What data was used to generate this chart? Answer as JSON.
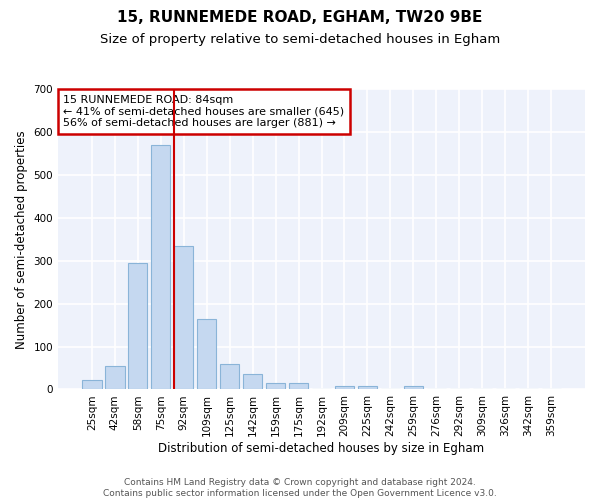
{
  "title1": "15, RUNNEMEDE ROAD, EGHAM, TW20 9BE",
  "title2": "Size of property relative to semi-detached houses in Egham",
  "xlabel": "Distribution of semi-detached houses by size in Egham",
  "ylabel": "Number of semi-detached properties",
  "categories": [
    "25sqm",
    "42sqm",
    "58sqm",
    "75sqm",
    "92sqm",
    "109sqm",
    "125sqm",
    "142sqm",
    "159sqm",
    "175sqm",
    "192sqm",
    "209sqm",
    "225sqm",
    "242sqm",
    "259sqm",
    "276sqm",
    "292sqm",
    "309sqm",
    "326sqm",
    "342sqm",
    "359sqm"
  ],
  "values": [
    22,
    55,
    295,
    570,
    335,
    165,
    60,
    35,
    15,
    14,
    0,
    8,
    8,
    0,
    8,
    0,
    0,
    0,
    0,
    0,
    0
  ],
  "bar_color": "#c5d8f0",
  "bar_edgecolor": "#8ab4d8",
  "vline_color": "#cc0000",
  "annotation_line1": "15 RUNNEMEDE ROAD: 84sqm",
  "annotation_line2": "← 41% of semi-detached houses are smaller (645)",
  "annotation_line3": "56% of semi-detached houses are larger (881) →",
  "annotation_box_color": "#ffffff",
  "annotation_box_edgecolor": "#cc0000",
  "ylim": [
    0,
    700
  ],
  "yticks": [
    0,
    100,
    200,
    300,
    400,
    500,
    600,
    700
  ],
  "footer": "Contains HM Land Registry data © Crown copyright and database right 2024.\nContains public sector information licensed under the Open Government Licence v3.0.",
  "bg_color": "#eef2fb",
  "grid_color": "#ffffff",
  "title1_fontsize": 11,
  "title2_fontsize": 9.5,
  "axis_label_fontsize": 8.5,
  "tick_fontsize": 7.5,
  "footer_fontsize": 6.5,
  "annotation_fontsize": 8
}
